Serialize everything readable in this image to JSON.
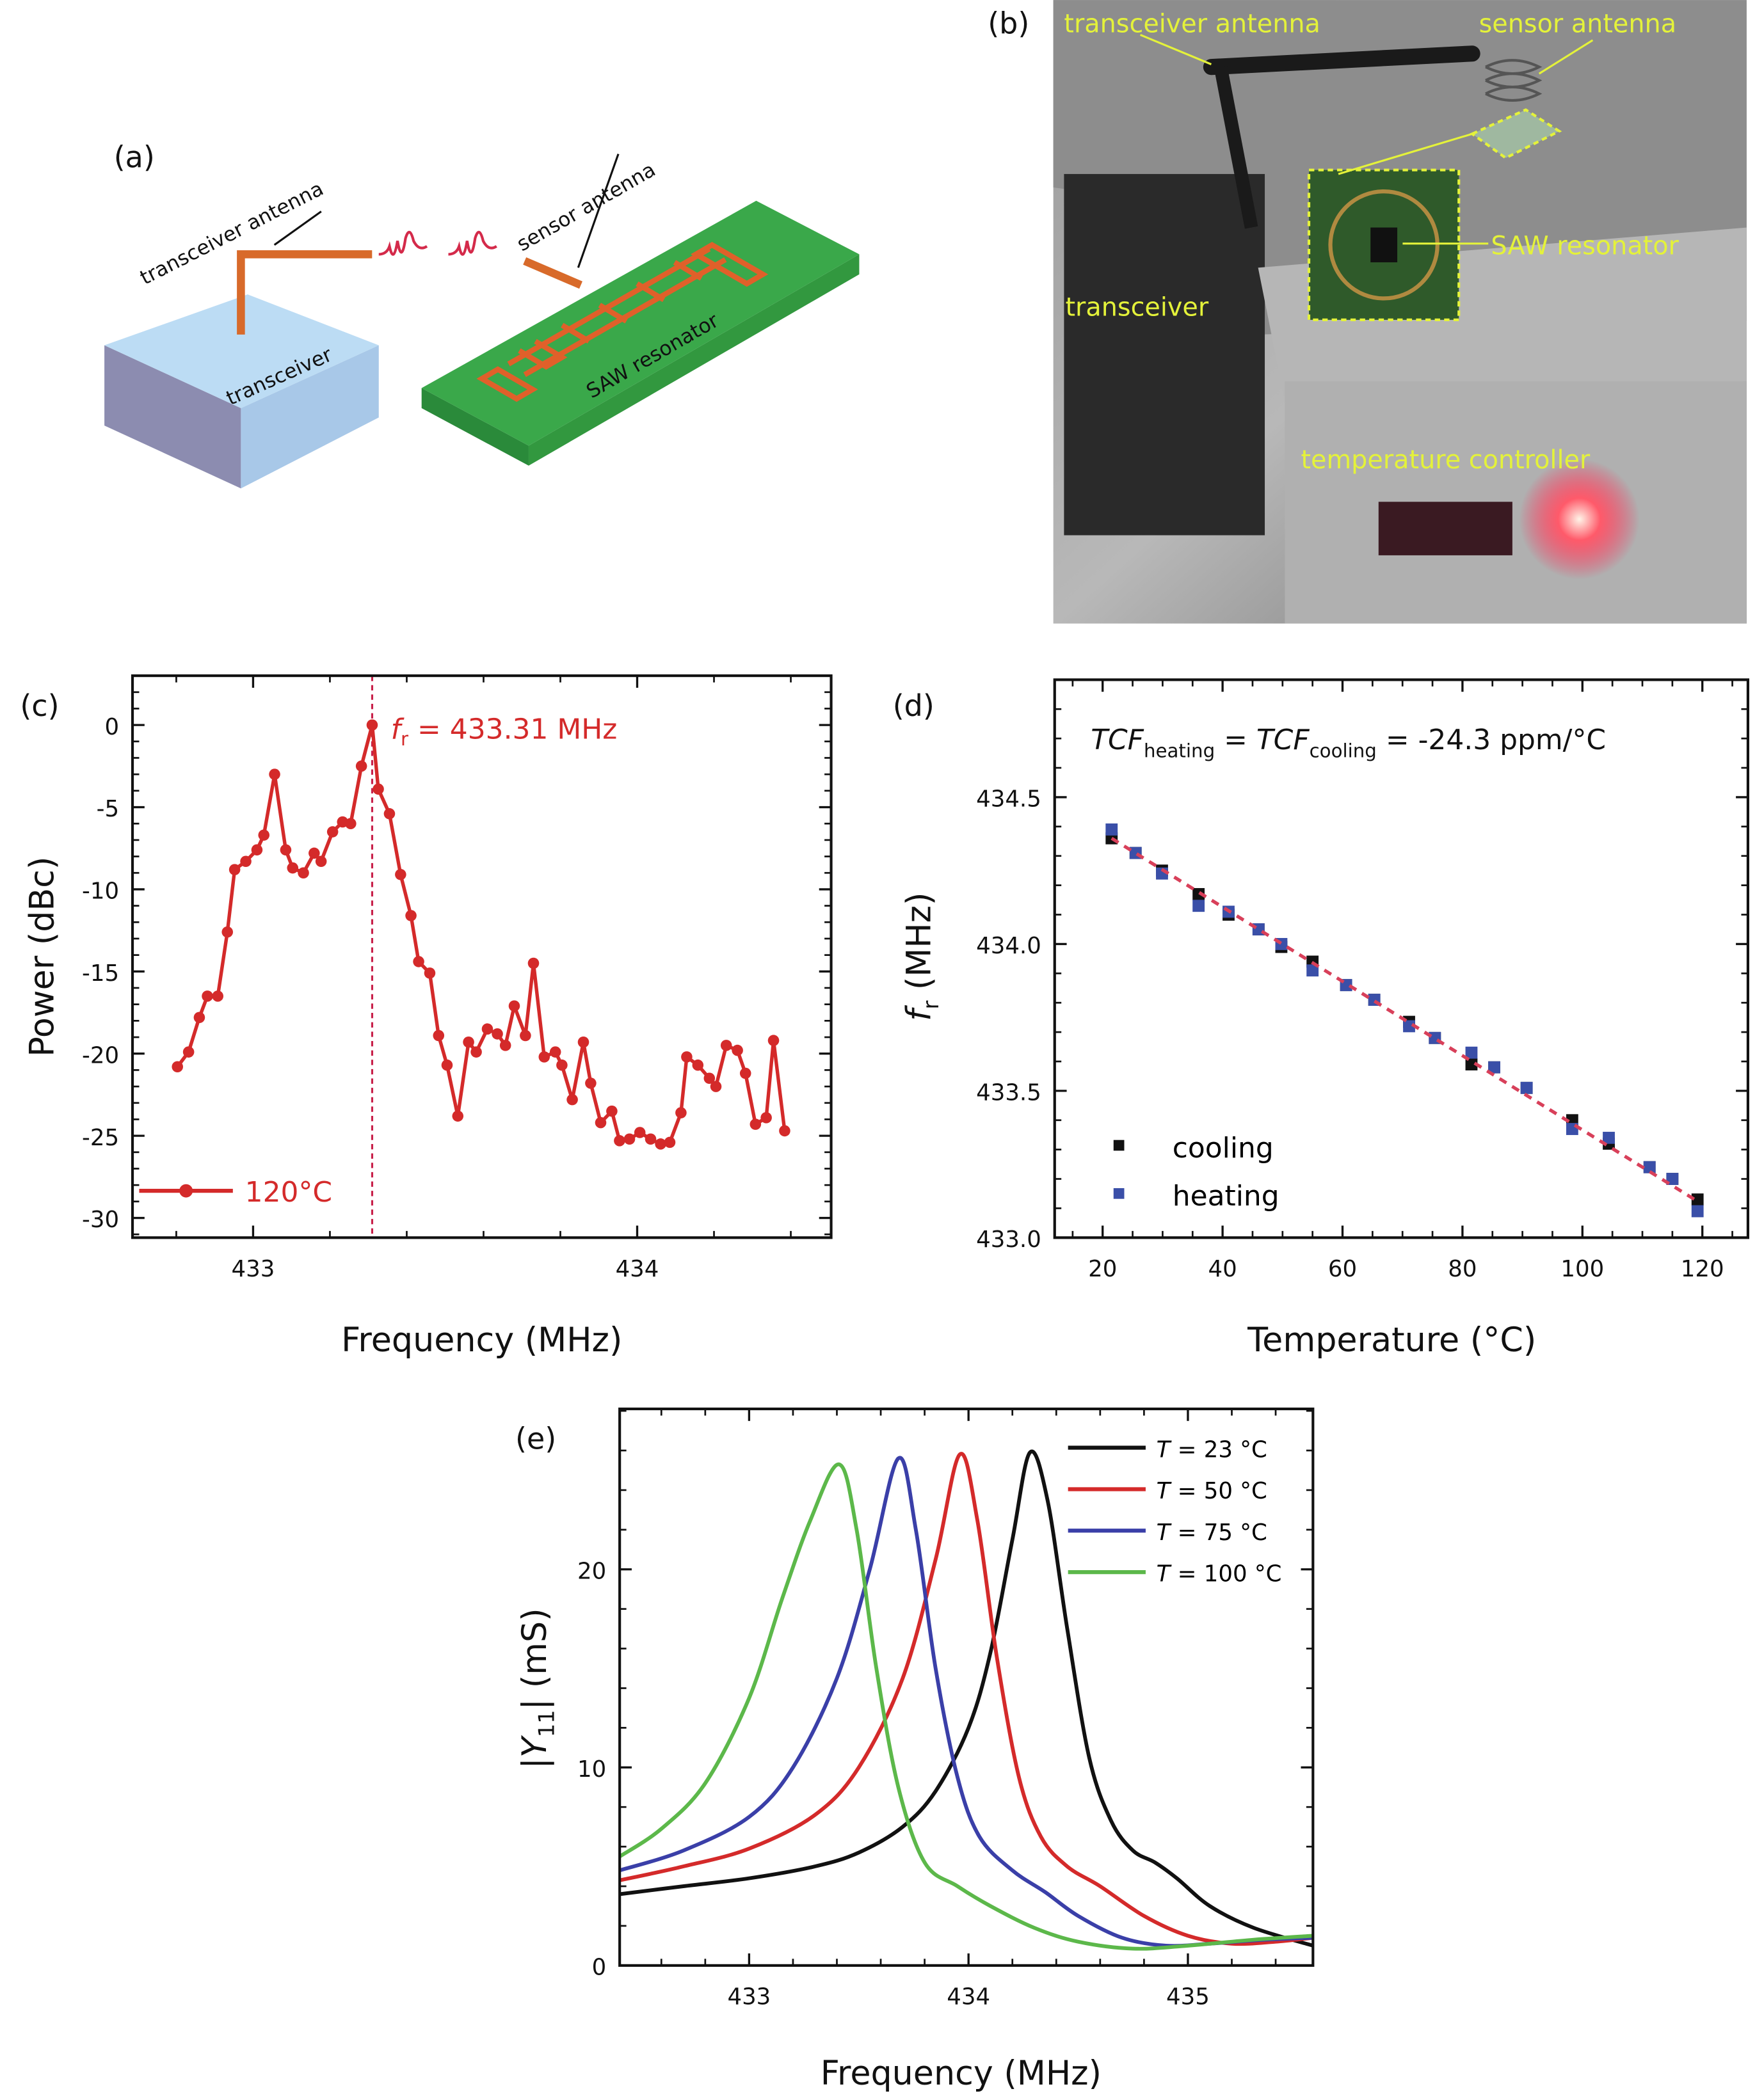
{
  "figure": {
    "panel_labels": [
      "(a)",
      "(b)",
      "(c)",
      "(d)",
      "(e)"
    ],
    "panel_a": {
      "transceiver_antenna": "transceiver antenna",
      "sensor_antenna": "sensor antenna",
      "transceiver": "transceiver",
      "saw_resonator": "SAW resonator"
    },
    "panel_b": {
      "transceiver_antenna": "transceiver antenna",
      "sensor_antenna": "sensor antenna",
      "saw_resonator": "SAW resonator",
      "transceiver": "transceiver",
      "temperature_controller": "temperature controller"
    },
    "colors": {
      "label_yellow": "#e4f23a",
      "trace_red": "#d42a2a",
      "transceiver_box": "#b8d8f0",
      "saw_substrate": "#3aa84a",
      "electrode_orange": "#e0602a"
    }
  },
  "chart_data": [
    {
      "panel": "(c)",
      "type": "line",
      "xlabel": "Frequency (MHz)",
      "ylabel": "Power (dBc)",
      "xlim": [
        432.686,
        434.505
      ],
      "ylim": [
        -31.2,
        3.0
      ],
      "xticks": [
        433,
        434
      ],
      "yticks": [
        0,
        -5,
        -10,
        -15,
        -20,
        -25,
        -30
      ],
      "marker": "circle",
      "color": "#d42a2a",
      "legend": {
        "placement": "bottom-left",
        "entries": [
          "120°C"
        ]
      },
      "annotation": {
        "f": "f",
        "sub": "r",
        "rest": " = 433.31 MHz",
        "x": 433.31
      },
      "series": [
        {
          "name": "120°C",
          "x": [
            432.803,
            432.832,
            432.86,
            432.881,
            432.908,
            432.933,
            432.952,
            432.981,
            433.01,
            433.028,
            433.056,
            433.085,
            433.103,
            433.131,
            433.159,
            433.177,
            433.207,
            433.233,
            433.254,
            433.282,
            433.31,
            433.326,
            433.355,
            433.384,
            433.411,
            433.431,
            433.46,
            433.483,
            433.505,
            433.533,
            433.561,
            433.581,
            433.61,
            433.636,
            433.657,
            433.68,
            433.709,
            433.73,
            433.758,
            433.787,
            433.804,
            433.831,
            433.86,
            433.879,
            433.905,
            433.934,
            433.954,
            433.98,
            434.007,
            434.035,
            434.061,
            434.085,
            434.114,
            434.129,
            434.158,
            434.188,
            434.205,
            434.232,
            434.261,
            434.282,
            434.308,
            434.336,
            434.355,
            434.384
          ],
          "y": [
            -20.8,
            -19.9,
            -17.8,
            -16.5,
            -16.5,
            -12.6,
            -8.8,
            -8.3,
            -7.6,
            -6.7,
            -3.0,
            -7.6,
            -8.7,
            -9.0,
            -7.8,
            -8.3,
            -6.5,
            -5.9,
            -6.0,
            -2.5,
            0.0,
            -3.9,
            -5.4,
            -9.1,
            -11.6,
            -14.4,
            -15.1,
            -18.9,
            -20.7,
            -23.8,
            -19.3,
            -19.9,
            -18.5,
            -18.8,
            -19.5,
            -17.1,
            -18.9,
            -14.5,
            -20.2,
            -19.9,
            -20.7,
            -22.8,
            -19.3,
            -21.8,
            -24.2,
            -23.5,
            -25.3,
            -25.2,
            -24.8,
            -25.2,
            -25.5,
            -25.4,
            -23.6,
            -20.2,
            -20.7,
            -21.5,
            -22.0,
            -19.5,
            -19.8,
            -21.2,
            -24.3,
            -23.9,
            -19.2,
            -24.7
          ]
        }
      ]
    },
    {
      "panel": "(d)",
      "type": "scatter",
      "xlabel": "Temperature (°C)",
      "ylabel": {
        "f": "f",
        "sub": "r",
        "rest": " (MHz)"
      },
      "xlim": [
        12,
        127.6
      ],
      "ylim": [
        433.0,
        434.9
      ],
      "xticks": [
        20,
        40,
        60,
        80,
        100,
        120
      ],
      "yticks": [
        "433.0",
        "433.5",
        "434.0",
        "434.5"
      ],
      "annotation": {
        "tcf1": "TCF",
        "sub1": "heating",
        "eq1": " = ",
        "tcf2": "TCF",
        "sub2": "cooling",
        "rest": " = -24.3 ppm/°C"
      },
      "legend": {
        "placement": "bottom-left",
        "entries": [
          "cooling",
          "heating"
        ]
      },
      "fit": {
        "style": "dashed",
        "color": "#d8405a",
        "x": [
          21.5,
          119.5
        ],
        "y": [
          434.36,
          433.12
        ]
      },
      "series": [
        {
          "name": "cooling",
          "color": "#111111",
          "x": [
            21.5,
            25.5,
            29.9,
            36,
            41,
            46,
            49.8,
            55,
            60.6,
            65.3,
            71.1,
            75.4,
            81.5,
            85.3,
            90.7,
            98.3,
            104.4,
            111.2,
            115,
            119.2
          ],
          "y": [
            434.36,
            434.31,
            434.25,
            434.17,
            434.1,
            434.05,
            433.99,
            433.94,
            433.86,
            433.81,
            433.735,
            433.68,
            433.59,
            433.58,
            433.51,
            433.4,
            433.32,
            433.24,
            433.2,
            433.13
          ]
        },
        {
          "name": "heating",
          "color": "#3a4fa8",
          "x": [
            21.5,
            25.5,
            29.9,
            36,
            41,
            46,
            49.8,
            55,
            60.6,
            65.3,
            71.1,
            75.4,
            81.5,
            85.3,
            90.7,
            98.3,
            104.4,
            111.2,
            115,
            119.2
          ],
          "y": [
            434.39,
            434.31,
            434.24,
            434.13,
            434.11,
            434.05,
            434.0,
            433.91,
            433.86,
            433.81,
            433.72,
            433.68,
            433.63,
            433.58,
            433.51,
            433.37,
            433.34,
            433.24,
            433.2,
            433.09
          ]
        }
      ]
    },
    {
      "panel": "(e)",
      "type": "line",
      "xlabel": "Frequency (MHz)",
      "ylabel": {
        "pre": "|",
        "v": "Y",
        "sub": "11",
        "rest": "| (mS)"
      },
      "xlim": [
        432.41,
        435.57
      ],
      "ylim": [
        0,
        28.1
      ],
      "xticks": [
        433,
        434,
        435
      ],
      "yticks": [
        0,
        10,
        20
      ],
      "legend": {
        "placement": "top-right"
      },
      "series": [
        {
          "name": "T = 23 °C",
          "t": "T",
          "rest": " = 23 °C",
          "color": "#111111",
          "x": [
            432.41,
            432.7,
            433.0,
            433.3,
            433.5,
            433.7,
            433.85,
            434.0,
            434.1,
            434.2,
            434.28,
            434.36,
            434.45,
            434.55,
            434.65,
            434.75,
            434.85,
            434.95,
            435.1,
            435.3,
            435.57
          ],
          "y": [
            3.6,
            4.0,
            4.4,
            5.0,
            5.7,
            7.0,
            8.8,
            12.0,
            15.8,
            21.5,
            25.9,
            23.5,
            17.0,
            10.5,
            7.3,
            5.8,
            5.2,
            4.4,
            3.0,
            1.9,
            1.0
          ]
        },
        {
          "name": "T = 50 °C",
          "t": "T",
          "rest": " = 50 °C",
          "color": "#d42a2a",
          "x": [
            432.41,
            432.7,
            433.0,
            433.3,
            433.5,
            433.7,
            433.85,
            433.96,
            434.04,
            434.13,
            434.23,
            434.33,
            434.45,
            434.6,
            434.8,
            435.0,
            435.2,
            435.4,
            435.57
          ],
          "y": [
            4.3,
            5.0,
            5.9,
            7.6,
            10.0,
            14.5,
            20.5,
            25.8,
            22.5,
            15.5,
            9.5,
            6.5,
            5.0,
            4.0,
            2.5,
            1.5,
            1.1,
            1.2,
            1.4
          ]
        },
        {
          "name": "T = 75 °C",
          "t": "T",
          "rest": " = 75 °C",
          "color": "#3a3fa8",
          "x": [
            432.41,
            432.7,
            433.0,
            433.2,
            433.4,
            433.55,
            433.68,
            433.76,
            433.85,
            433.95,
            434.05,
            434.2,
            434.35,
            434.5,
            434.7,
            434.9,
            435.1,
            435.35,
            435.57
          ],
          "y": [
            4.8,
            5.8,
            7.5,
            10.0,
            14.5,
            20.0,
            25.6,
            22.0,
            15.0,
            9.5,
            6.5,
            4.8,
            3.7,
            2.5,
            1.4,
            1.0,
            1.1,
            1.3,
            1.4
          ]
        },
        {
          "name": "T = 100 °C",
          "t": "T",
          "rest": " = 100 °C",
          "color": "#5cb84a",
          "x": [
            432.41,
            432.6,
            432.8,
            433.0,
            433.15,
            433.28,
            433.41,
            433.49,
            433.58,
            433.68,
            433.8,
            433.95,
            434.1,
            434.3,
            434.5,
            434.75,
            435.0,
            435.3,
            435.57
          ],
          "y": [
            5.5,
            6.9,
            9.2,
            13.5,
            18.5,
            22.5,
            25.3,
            22.0,
            15.0,
            9.0,
            5.2,
            4.0,
            3.0,
            1.9,
            1.2,
            0.85,
            1.0,
            1.3,
            1.5
          ]
        }
      ]
    }
  ]
}
